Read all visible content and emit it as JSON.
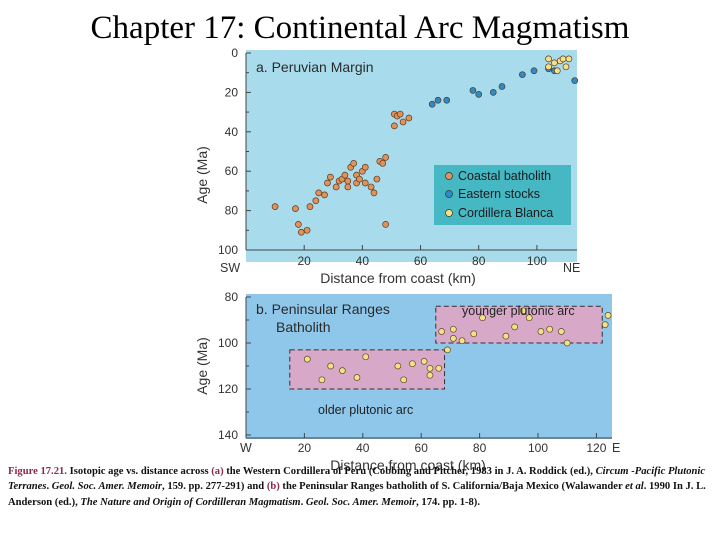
{
  "slide": {
    "title": "Chapter 17: Continental Arc Magmatism"
  },
  "colors": {
    "panel_bg": "#a8dcec",
    "panel_bg_b": "#8fc7ea",
    "coastal": "#e0925a",
    "eastern": "#2a8cc8",
    "blanca": "#f5e08a",
    "arc_box": "#d8a8c8",
    "legend_bg": "#45b8c4"
  },
  "chart_data": [
    {
      "type": "scatter",
      "title": "a. Peruvian Margin",
      "xlabel": "Distance from coast (km)",
      "ylabel": "Age (Ma)",
      "xlim": [
        0,
        110
      ],
      "ylim": [
        100,
        0
      ],
      "x_ticks": [
        "20",
        "40",
        "60",
        "80",
        "100"
      ],
      "y_ticks": [
        "0",
        "20",
        "40",
        "60",
        "80",
        "100"
      ],
      "x_end_labels": {
        "left": "SW",
        "right": "NE"
      },
      "legend_position": "bottom-right",
      "series": [
        {
          "name": "Coastal batholith",
          "points": [
            [
              10,
              78
            ],
            [
              17,
              79
            ],
            [
              18,
              87
            ],
            [
              19,
              91
            ],
            [
              21,
              90
            ],
            [
              22,
              78
            ],
            [
              24,
              75
            ],
            [
              25,
              71
            ],
            [
              27,
              72
            ],
            [
              28,
              66
            ],
            [
              29,
              63
            ],
            [
              31,
              68
            ],
            [
              32,
              65
            ],
            [
              33,
              64
            ],
            [
              34,
              62
            ],
            [
              35,
              68
            ],
            [
              35,
              65
            ],
            [
              36,
              58
            ],
            [
              37,
              56
            ],
            [
              38,
              62
            ],
            [
              38,
              66
            ],
            [
              39,
              64
            ],
            [
              40,
              60
            ],
            [
              41,
              58
            ],
            [
              41,
              66
            ],
            [
              43,
              68
            ],
            [
              44,
              71
            ],
            [
              45,
              64
            ],
            [
              46,
              55
            ],
            [
              47,
              56
            ],
            [
              48,
              53
            ],
            [
              48,
              87
            ],
            [
              51,
              31
            ],
            [
              51,
              37
            ],
            [
              52,
              32
            ],
            [
              53,
              31
            ],
            [
              54,
              35
            ],
            [
              56,
              33
            ]
          ]
        },
        {
          "name": "Eastern stocks",
          "points": [
            [
              64,
              26
            ],
            [
              66,
              24
            ],
            [
              69,
              24
            ],
            [
              78,
              19
            ],
            [
              80,
              21
            ],
            [
              85,
              20
            ],
            [
              88,
              17
            ],
            [
              95,
              11
            ],
            [
              99,
              9
            ],
            [
              104,
              8
            ],
            [
              106,
              9
            ],
            [
              113,
              14
            ]
          ]
        },
        {
          "name": "Cordillera Blanca",
          "points": [
            [
              104,
              3
            ],
            [
              104,
              7
            ],
            [
              106,
              5
            ],
            [
              107,
              9
            ],
            [
              108,
              4
            ],
            [
              109,
              3
            ],
            [
              110,
              7
            ],
            [
              111,
              3
            ]
          ]
        }
      ]
    },
    {
      "type": "scatter",
      "title": "b. Peninsular Ranges Batholith",
      "xlabel": "Distance from coast (km)",
      "ylabel": "Age (Ma)",
      "xlim": [
        0,
        125
      ],
      "ylim": [
        140,
        80
      ],
      "x_ticks": [
        "20",
        "40",
        "60",
        "80",
        "100",
        "120"
      ],
      "y_ticks": [
        "80",
        "100",
        "120",
        "140"
      ],
      "x_end_labels": {
        "left": "W",
        "right": "E"
      },
      "annotations": [
        "younger plutonic arc",
        "older plutonic arc"
      ],
      "points": [
        [
          21,
          107
        ],
        [
          26,
          116
        ],
        [
          29,
          110
        ],
        [
          33,
          112
        ],
        [
          38,
          115
        ],
        [
          41,
          106
        ],
        [
          52,
          110
        ],
        [
          54,
          116
        ],
        [
          57,
          109
        ],
        [
          61,
          108
        ],
        [
          63,
          114
        ],
        [
          63,
          111
        ],
        [
          66,
          111
        ],
        [
          69,
          103
        ],
        [
          67,
          95
        ],
        [
          71,
          94
        ],
        [
          71,
          98
        ],
        [
          74,
          99
        ],
        [
          78,
          96
        ],
        [
          81,
          89
        ],
        [
          89,
          97
        ],
        [
          92,
          93
        ],
        [
          95,
          86
        ],
        [
          97,
          89
        ],
        [
          101,
          95
        ],
        [
          104,
          94
        ],
        [
          108,
          95
        ],
        [
          110,
          100
        ],
        [
          123,
          92
        ],
        [
          124,
          88
        ]
      ]
    }
  ],
  "caption": {
    "figure_label": "Figure 17.21.",
    "part1": " Isotopic age vs. distance across ",
    "a_label": "(a)",
    "part2": " the Western Cordillera of Peru (Cobbing and Pitcher, 1983 in J. A. Roddick (ed.), ",
    "book1": "Circum -Pacific Plutonic Terranes",
    "part3": ". ",
    "journal1": "Geol. Soc. Amer. Memoir",
    "part4": ", 159. pp. 277-291) and ",
    "b_label": "(b)",
    "part5": " the Peninsular Ranges batholith of S. California/Baja Mexico (Walawander ",
    "etal": "et al",
    "part6": ". 1990 In J. L. Anderson (ed.), ",
    "book2": "The Nature and Origin of Cordilleran Magmatism",
    "part7": ". ",
    "journal2": "Geol. Soc. Amer. Memoir",
    "part8": ", 174. pp. 1-8)."
  }
}
